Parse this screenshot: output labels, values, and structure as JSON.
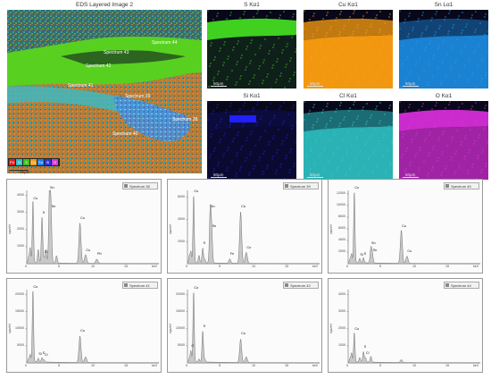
{
  "layered": {
    "title": "EDS Layered Image 2",
    "scale": "50μm",
    "legend": [
      {
        "text": "Pb",
        "color": "#e02020"
      },
      {
        "text": "Cl",
        "color": "#30c0c0"
      },
      {
        "text": "S",
        "color": "#40c020"
      },
      {
        "text": "Cu",
        "color": "#f0a020"
      },
      {
        "text": "Sn",
        "color": "#2080f0"
      },
      {
        "text": "Si",
        "color": "#3030e0"
      },
      {
        "text": "O",
        "color": "#d040d0"
      }
    ],
    "spectrum_labels": [
      "Spectrum 44",
      "Spectrum 43",
      "Spectrum 42",
      "Spectrum 41",
      "Spectrum 39",
      "Spectrum 38",
      "Spectrum 40"
    ]
  },
  "maps": [
    {
      "title": "S Kα1",
      "color": "#40d020",
      "scale": "50μm"
    },
    {
      "title": "Cu Kα1",
      "color": "#ffa010",
      "scale": "50μm"
    },
    {
      "title": "Sn Lα1",
      "color": "#20a0ff",
      "scale": "50μm"
    },
    {
      "title": "Si Kα1",
      "color": "#2020ff",
      "scale": "50μm"
    },
    {
      "title": "Cl Kα1",
      "color": "#30d0d0",
      "scale": "50μm"
    },
    {
      "title": "O Kα1",
      "color": "#e030e0",
      "scale": "50μm"
    }
  ],
  "spectra": [
    {
      "legend": "Spectrum 38",
      "yticks": [
        "4000",
        "3000",
        "2000",
        "1000"
      ],
      "ylabel": "cps/eV",
      "xticks": [
        "0",
        "5",
        "10",
        "15"
      ],
      "xunit": "keV",
      "peaks": [
        {
          "x": 0.3,
          "y": 0.08
        },
        {
          "x": 0.52,
          "y": 0.2
        },
        {
          "x": 0.93,
          "y": 0.85
        },
        {
          "x": 1.74,
          "y": 0.18
        },
        {
          "x": 2.31,
          "y": 0.62
        },
        {
          "x": 2.62,
          "y": 0.05
        },
        {
          "x": 2.9,
          "y": 0.18
        },
        {
          "x": 3.44,
          "y": 0.98
        },
        {
          "x": 3.66,
          "y": 0.72
        },
        {
          "x": 4.5,
          "y": 0.1
        },
        {
          "x": 8.05,
          "y": 0.55
        },
        {
          "x": 8.9,
          "y": 0.12
        },
        {
          "x": 10.6,
          "y": 0.06
        }
      ],
      "labels": [
        {
          "text": "Cu",
          "x": 0.93,
          "y": 0.85
        },
        {
          "text": "Sn",
          "x": 3.44,
          "y": 1.0
        },
        {
          "text": "Sn",
          "x": 3.66,
          "y": 0.74
        },
        {
          "text": "S",
          "x": 2.31,
          "y": 0.66
        },
        {
          "text": "Cl",
          "x": 2.62,
          "y": 0.12
        },
        {
          "text": "Cu",
          "x": 8.05,
          "y": 0.58
        },
        {
          "text": "Cu",
          "x": 8.9,
          "y": 0.15
        },
        {
          "text": "Pb",
          "x": 10.6,
          "y": 0.1
        }
      ]
    },
    {
      "legend": "Spectrum 39",
      "yticks": [
        "6000",
        "4000",
        "2000"
      ],
      "ylabel": "cps/eV",
      "xticks": [
        "0",
        "5",
        "10",
        "15"
      ],
      "xunit": "keV",
      "peaks": [
        {
          "x": 0.3,
          "y": 0.1
        },
        {
          "x": 0.52,
          "y": 0.15
        },
        {
          "x": 0.93,
          "y": 0.92
        },
        {
          "x": 1.74,
          "y": 0.1
        },
        {
          "x": 2.31,
          "y": 0.2
        },
        {
          "x": 2.62,
          "y": 0.05
        },
        {
          "x": 3.44,
          "y": 0.7
        },
        {
          "x": 3.66,
          "y": 0.45
        },
        {
          "x": 6.4,
          "y": 0.06
        },
        {
          "x": 8.05,
          "y": 0.7
        },
        {
          "x": 8.9,
          "y": 0.15
        }
      ],
      "labels": [
        {
          "text": "Cu",
          "x": 0.93,
          "y": 0.95
        },
        {
          "text": "Sn",
          "x": 3.44,
          "y": 0.74
        },
        {
          "text": "Sn",
          "x": 3.66,
          "y": 0.48
        },
        {
          "text": "S",
          "x": 2.31,
          "y": 0.24
        },
        {
          "text": "Cu",
          "x": 8.05,
          "y": 0.74
        },
        {
          "text": "Cu",
          "x": 8.9,
          "y": 0.18
        },
        {
          "text": "Fe",
          "x": 6.4,
          "y": 0.1
        }
      ]
    },
    {
      "legend": "Spectrum 40",
      "yticks": [
        "12000",
        "10000",
        "8000",
        "6000",
        "4000",
        "2000"
      ],
      "ylabel": "cps/eV",
      "xticks": [
        "0",
        "5",
        "10",
        "15"
      ],
      "xunit": "keV",
      "peaks": [
        {
          "x": 0.3,
          "y": 0.05
        },
        {
          "x": 0.52,
          "y": 0.12
        },
        {
          "x": 0.93,
          "y": 0.97
        },
        {
          "x": 1.74,
          "y": 0.06
        },
        {
          "x": 2.31,
          "y": 0.07
        },
        {
          "x": 3.44,
          "y": 0.2
        },
        {
          "x": 3.66,
          "y": 0.12
        },
        {
          "x": 8.05,
          "y": 0.45
        },
        {
          "x": 8.9,
          "y": 0.1
        }
      ],
      "labels": [
        {
          "text": "Cu",
          "x": 0.93,
          "y": 1.0
        },
        {
          "text": "Sn",
          "x": 3.44,
          "y": 0.24
        },
        {
          "text": "Sn",
          "x": 3.66,
          "y": 0.15
        },
        {
          "text": "Cu",
          "x": 8.05,
          "y": 0.48
        },
        {
          "text": "Cu",
          "x": 8.9,
          "y": 0.13
        },
        {
          "text": "S",
          "x": 2.31,
          "y": 0.1
        },
        {
          "text": "Si",
          "x": 1.74,
          "y": 0.09
        }
      ]
    },
    {
      "legend": "Spectrum 41",
      "yticks": [
        "20000",
        "15000",
        "10000",
        "5000"
      ],
      "ylabel": "cps/eV",
      "xticks": [
        "0",
        "5",
        "10",
        "15"
      ],
      "xunit": "keV",
      "peaks": [
        {
          "x": 0.3,
          "y": 0.04
        },
        {
          "x": 0.52,
          "y": 0.1
        },
        {
          "x": 0.93,
          "y": 0.98
        },
        {
          "x": 1.74,
          "y": 0.05
        },
        {
          "x": 2.31,
          "y": 0.06
        },
        {
          "x": 2.62,
          "y": 0.03
        },
        {
          "x": 8.05,
          "y": 0.36
        },
        {
          "x": 8.9,
          "y": 0.08
        }
      ],
      "labels": [
        {
          "text": "Cu",
          "x": 0.93,
          "y": 1.0
        },
        {
          "text": "Cl",
          "x": 2.62,
          "y": 0.07
        },
        {
          "text": "Cu",
          "x": 8.05,
          "y": 0.4
        },
        {
          "text": "S",
          "x": 2.31,
          "y": 0.1
        },
        {
          "text": "Si",
          "x": 1.74,
          "y": 0.09
        }
      ]
    },
    {
      "legend": "Spectrum 42",
      "yticks": [
        "20000",
        "15000",
        "10000",
        "5000"
      ],
      "ylabel": "cps/eV",
      "xticks": [
        "0",
        "5",
        "10",
        "15"
      ],
      "xunit": "keV",
      "peaks": [
        {
          "x": 0.3,
          "y": 0.05
        },
        {
          "x": 0.52,
          "y": 0.15
        },
        {
          "x": 0.93,
          "y": 0.96
        },
        {
          "x": 1.74,
          "y": 0.04
        },
        {
          "x": 2.31,
          "y": 0.42
        },
        {
          "x": 2.62,
          "y": 0.04
        },
        {
          "x": 8.05,
          "y": 0.32
        },
        {
          "x": 8.9,
          "y": 0.08
        }
      ],
      "labels": [
        {
          "text": "Cu",
          "x": 0.93,
          "y": 0.99
        },
        {
          "text": "S",
          "x": 2.31,
          "y": 0.46
        },
        {
          "text": "Cu",
          "x": 8.05,
          "y": 0.36
        },
        {
          "text": "O",
          "x": 0.52,
          "y": 0.19
        }
      ]
    },
    {
      "legend": "Spectrum 44",
      "yticks": [
        "4000",
        "3000",
        "2000",
        "1000"
      ],
      "ylabel": "cps/eV",
      "xticks": [
        "0",
        "5",
        "10",
        "15"
      ],
      "xunit": "keV",
      "peaks": [
        {
          "x": 0.3,
          "y": 0.05
        },
        {
          "x": 0.52,
          "y": 0.12
        },
        {
          "x": 0.93,
          "y": 0.4
        },
        {
          "x": 1.74,
          "y": 0.06
        },
        {
          "x": 2.31,
          "y": 0.14
        },
        {
          "x": 2.62,
          "y": 0.06
        },
        {
          "x": 3.44,
          "y": 0.08
        },
        {
          "x": 8.05,
          "y": 0.04
        }
      ],
      "labels": [
        {
          "text": "Cu",
          "x": 0.93,
          "y": 0.43
        },
        {
          "text": "S",
          "x": 2.31,
          "y": 0.18
        },
        {
          "text": "Cl",
          "x": 2.62,
          "y": 0.1
        }
      ]
    }
  ]
}
